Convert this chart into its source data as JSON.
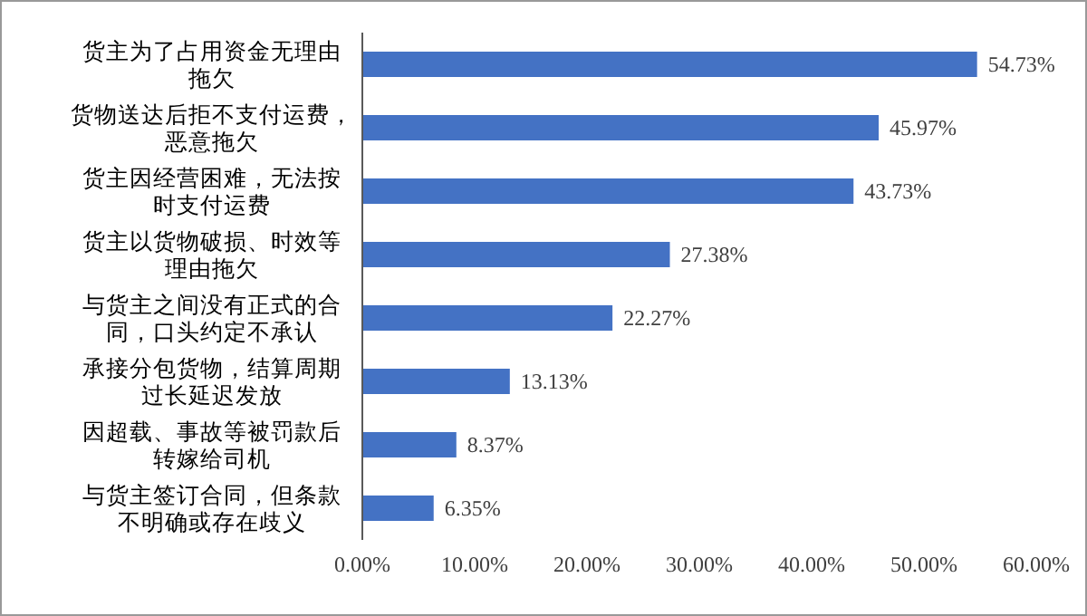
{
  "chart_data": {
    "type": "bar",
    "orientation": "horizontal",
    "categories": [
      "货主为了占用资金无理由拖欠",
      "货物送达后拒不支付运费，恶意拖欠",
      "货主因经营困难，无法按时支付运费",
      "货主以货物破损、时效等理由拖欠",
      "与货主之间没有正式的合同，口头约定不承认",
      "承接分包货物，结算周期过长延迟发放",
      "因超载、事故等被罚款后转嫁给司机",
      "与货主签订合同，但条款不明确或存在歧义"
    ],
    "values": [
      54.73,
      45.97,
      43.73,
      27.38,
      22.27,
      13.13,
      8.37,
      6.35
    ],
    "value_labels": [
      "54.73%",
      "45.97%",
      "43.73%",
      "27.38%",
      "22.27%",
      "13.13%",
      "8.37%",
      "6.35%"
    ],
    "color": "#4472c4",
    "xlim": [
      0,
      60
    ],
    "xticks": [
      {
        "value": 0,
        "label": "0.00%"
      },
      {
        "value": 10,
        "label": "10.00%"
      },
      {
        "value": 20,
        "label": "20.00%"
      },
      {
        "value": 30,
        "label": "30.00%"
      },
      {
        "value": 40,
        "label": "40.00%"
      },
      {
        "value": 50,
        "label": "50.00%"
      },
      {
        "value": 60,
        "label": "60.00%"
      }
    ],
    "grid": false
  }
}
